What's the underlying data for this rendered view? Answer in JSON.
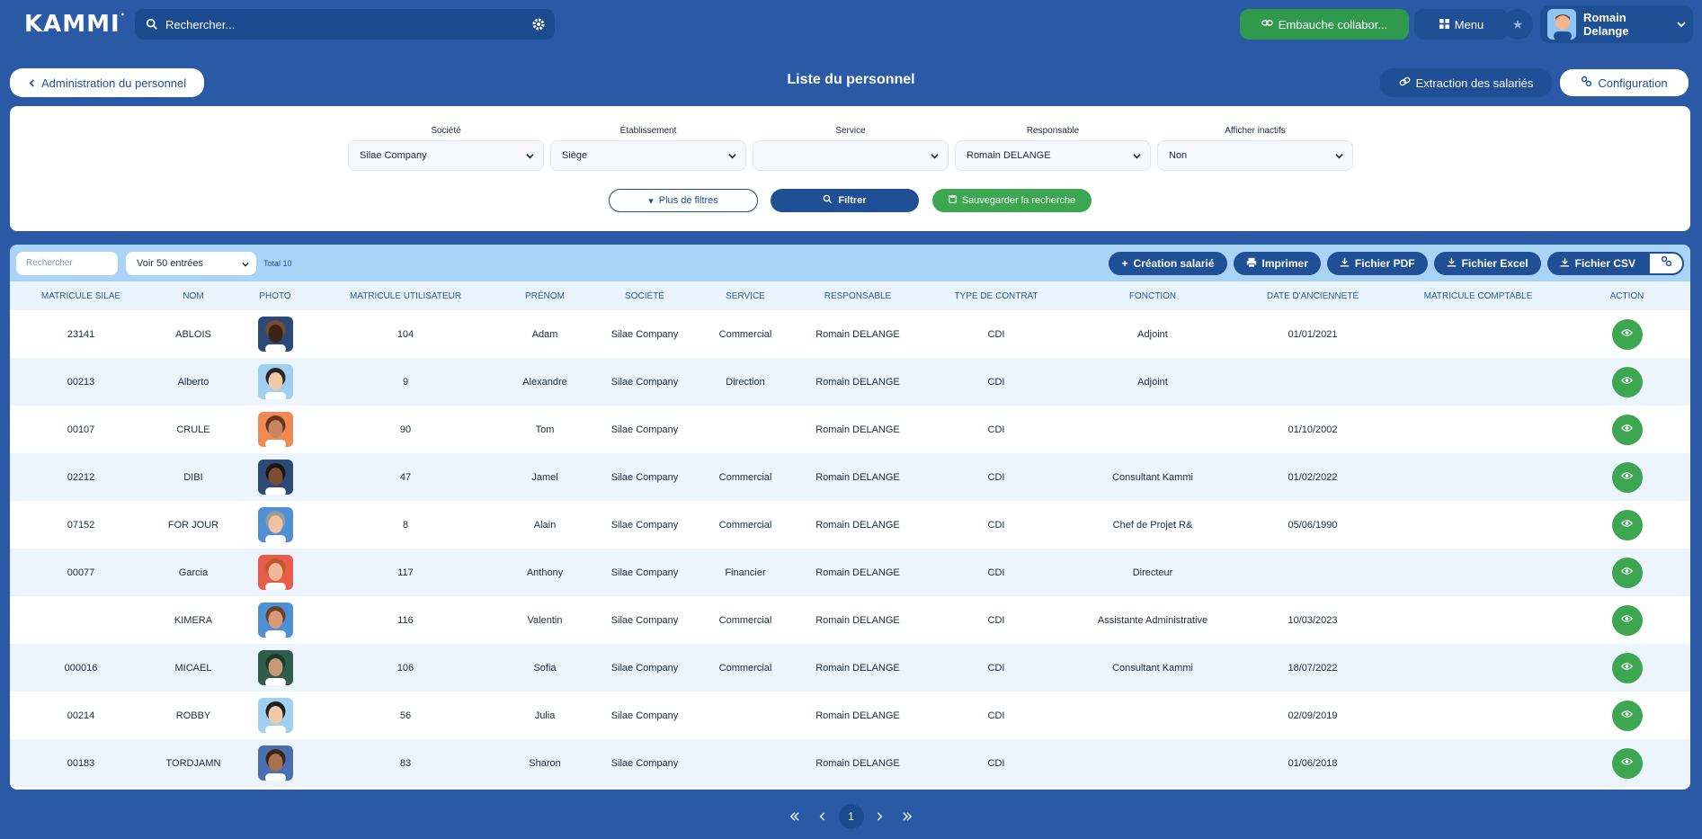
{
  "app": {
    "logo": "KAMMI"
  },
  "topbar": {
    "search_placeholder": "Rechercher...",
    "hire_label": "Embauche collabor...",
    "menu_label": "Menu",
    "user_name": "Romain Delange"
  },
  "header": {
    "back_label": "Administration du personnel",
    "title": "Liste du personnel",
    "extract_label": "Extraction des salariés",
    "config_label": "Configuration"
  },
  "filters": {
    "fields": [
      {
        "label": "Société",
        "value": "Silae Company"
      },
      {
        "label": "Établissement",
        "value": "Siège"
      },
      {
        "label": "Service",
        "value": ""
      },
      {
        "label": "Responsable",
        "value": "Romain DELANGE"
      },
      {
        "label": "Afficher inactifs",
        "value": "Non"
      }
    ],
    "more_filters_label": "Plus de filtres",
    "filter_label": "Filtrer",
    "save_label": "Sauvegarder la recherche"
  },
  "toolbar": {
    "search_placeholder": "Rechercher",
    "entries_label": "Voir 50 entrées",
    "total": "Total 10",
    "create_label": "Création salarié",
    "print_label": "Imprimer",
    "pdf_label": "Fichier PDF",
    "excel_label": "Fichier Excel",
    "csv_label": "Fichier CSV"
  },
  "table": {
    "columns": [
      "Matricule Silae",
      "Nom",
      "Photo",
      "Matricule utilisateur",
      "Prénom",
      "Société",
      "Service",
      "Responsable",
      "Type de contrat",
      "Fonction",
      "Date d'ancienneté",
      "Matricule comptable",
      "Action"
    ],
    "rows": [
      {
        "matricule": "23141",
        "nom": "ABLOIS",
        "matricule_user": "104",
        "prenom": "Adam",
        "societe": "Silae Company",
        "service": "Commercial",
        "responsable": "Romain DELANGE",
        "contrat": "CDI",
        "fonction": "Adjoint",
        "anciennete": "01/01/2021",
        "comptable": ""
      },
      {
        "matricule": "00213",
        "nom": "Alberto",
        "matricule_user": "9",
        "prenom": "Alexandre",
        "societe": "Silae Company",
        "service": "Direction",
        "responsable": "Romain DELANGE",
        "contrat": "CDI",
        "fonction": "Adjoint",
        "anciennete": "",
        "comptable": ""
      },
      {
        "matricule": "00107",
        "nom": "CRULE",
        "matricule_user": "90",
        "prenom": "Tom",
        "societe": "Silae Company",
        "service": "",
        "responsable": "Romain DELANGE",
        "contrat": "CDI",
        "fonction": "",
        "anciennete": "01/10/2002",
        "comptable": ""
      },
      {
        "matricule": "02212",
        "nom": "DIBI",
        "matricule_user": "47",
        "prenom": "Jamel",
        "societe": "Silae Company",
        "service": "Commercial",
        "responsable": "Romain DELANGE",
        "contrat": "CDI",
        "fonction": "Consultant Kammi",
        "anciennete": "01/02/2022",
        "comptable": ""
      },
      {
        "matricule": "07152",
        "nom": "FOR JOUR",
        "matricule_user": "8",
        "prenom": "Alain",
        "societe": "Silae Company",
        "service": "Commercial",
        "responsable": "Romain DELANGE",
        "contrat": "CDI",
        "fonction": "Chef de Projet R&",
        "anciennete": "05/06/1990",
        "comptable": ""
      },
      {
        "matricule": "00077",
        "nom": "Garcia",
        "matricule_user": "117",
        "prenom": "Anthony",
        "societe": "Silae Company",
        "service": "Financier",
        "responsable": "Romain DELANGE",
        "contrat": "CDI",
        "fonction": "Directeur",
        "anciennete": "",
        "comptable": ""
      },
      {
        "matricule": "",
        "nom": "KIMERA",
        "matricule_user": "116",
        "prenom": "Valentin",
        "societe": "Silae Company",
        "service": "Commercial",
        "responsable": "Romain DELANGE",
        "contrat": "CDI",
        "fonction": "Assistante Administrative",
        "anciennete": "10/03/2023",
        "comptable": ""
      },
      {
        "matricule": "000016",
        "nom": "MICAEL",
        "matricule_user": "106",
        "prenom": "Sofia",
        "societe": "Silae Company",
        "service": "Commercial",
        "responsable": "Romain DELANGE",
        "contrat": "CDI",
        "fonction": "Consultant Kammi",
        "anciennete": "18/07/2022",
        "comptable": ""
      },
      {
        "matricule": "00214",
        "nom": "ROBBY",
        "matricule_user": "56",
        "prenom": "Julia",
        "societe": "Silae Company",
        "service": "",
        "responsable": "Romain DELANGE",
        "contrat": "CDI",
        "fonction": "",
        "anciennete": "02/09/2019",
        "comptable": ""
      },
      {
        "matricule": "00183",
        "nom": "TORDJAMN",
        "matricule_user": "83",
        "prenom": "Sharon",
        "societe": "Silae Company",
        "service": "",
        "responsable": "Romain DELANGE",
        "contrat": "CDI",
        "fonction": "",
        "anciennete": "01/06/2018",
        "comptable": ""
      }
    ]
  },
  "pagination": {
    "current": "1"
  },
  "colors": {
    "background": "#2a5aa5",
    "primary": "#1f4f95",
    "success": "#3da651",
    "toolbar": "#a9d3f7"
  }
}
